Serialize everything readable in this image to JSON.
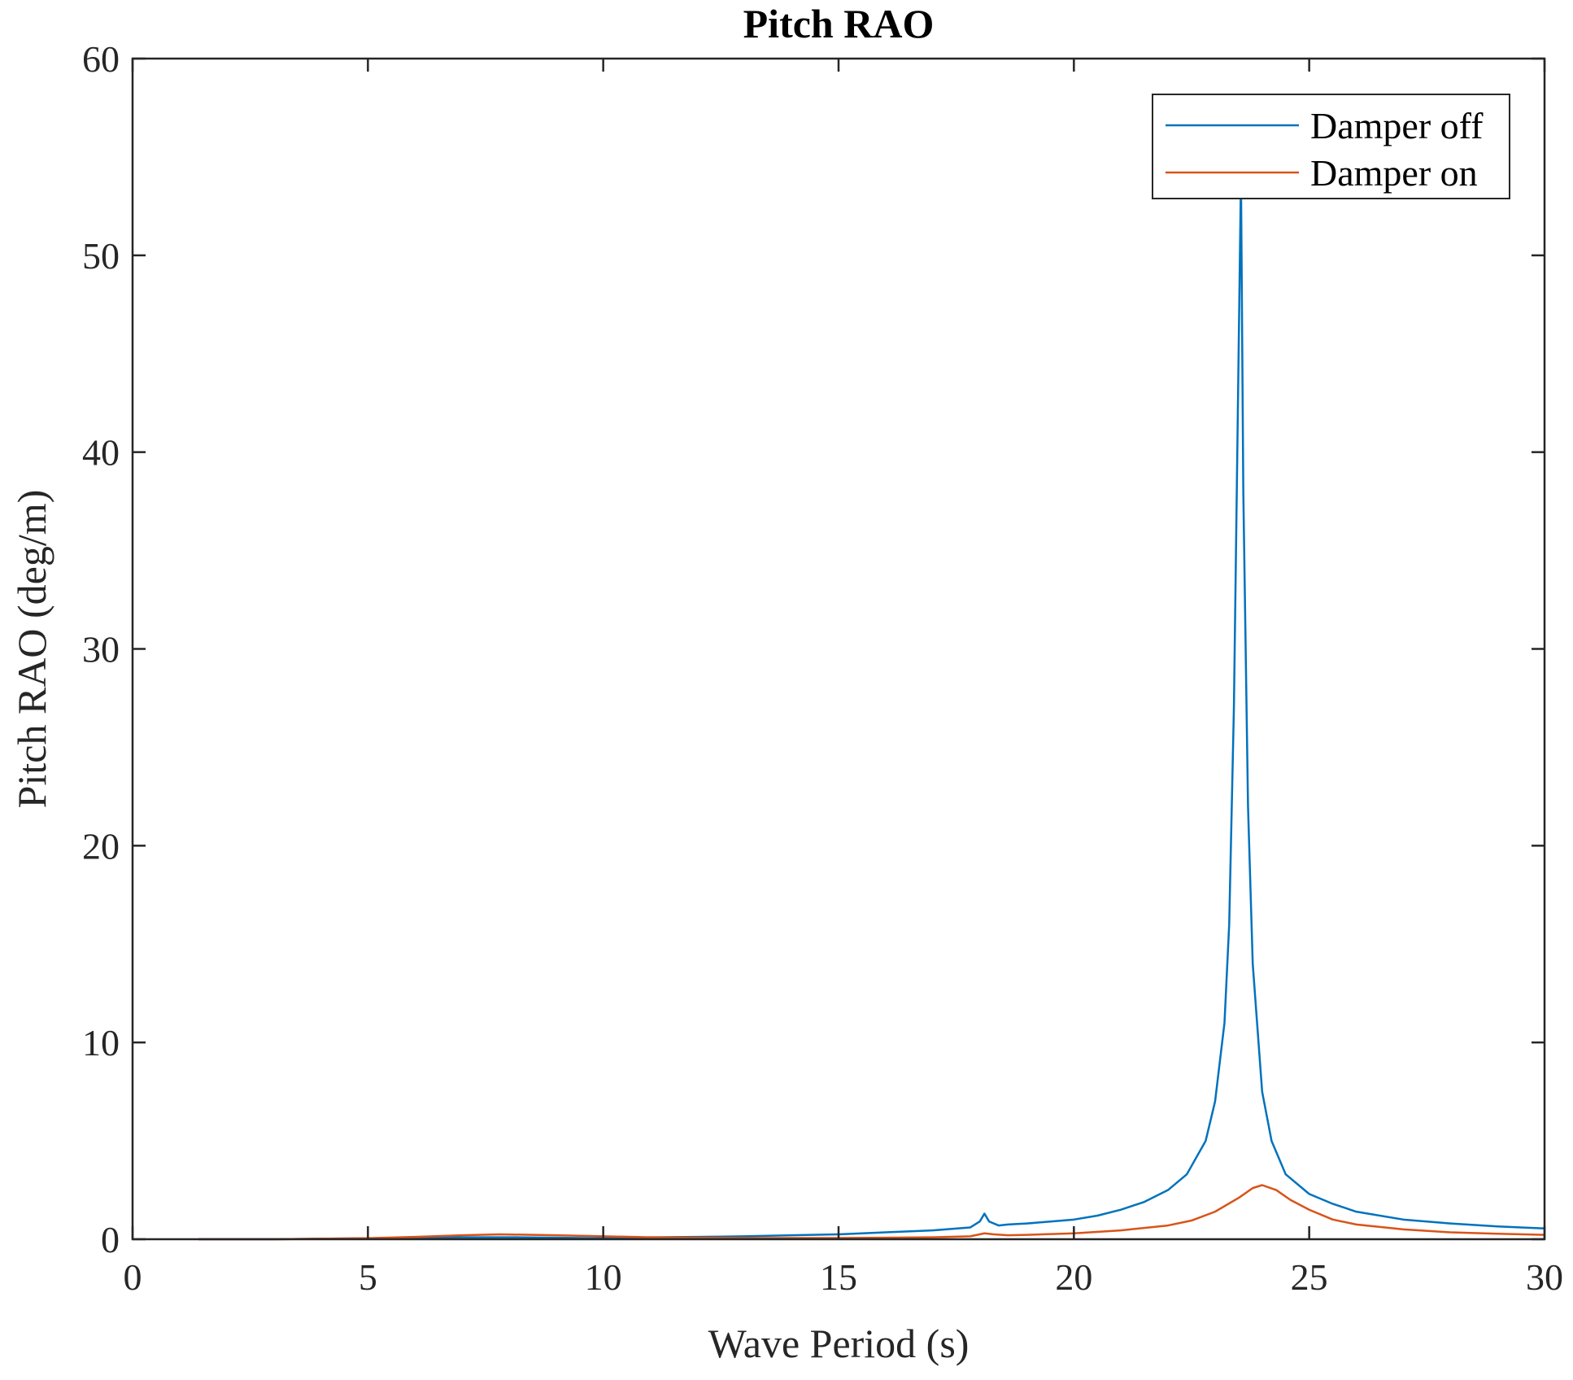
{
  "chart_data": {
    "type": "line",
    "title": "Pitch RAO",
    "xlabel": "Wave Period (s)",
    "ylabel": "Pitch RAO (deg/m)",
    "xlim": [
      0,
      30
    ],
    "ylim": [
      0,
      60
    ],
    "xticks": [
      0,
      5,
      10,
      15,
      20,
      25,
      30
    ],
    "yticks": [
      0,
      10,
      20,
      30,
      40,
      50,
      60
    ],
    "xtick_labels": [
      "0",
      "5",
      "10",
      "15",
      "20",
      "25",
      "30"
    ],
    "ytick_labels": [
      "0",
      "10",
      "20",
      "30",
      "40",
      "50",
      "60"
    ],
    "grid": false,
    "legend_position": "top-right",
    "series": [
      {
        "name": "Damper off",
        "color": "#0072BD",
        "x": [
          1.4,
          3,
          5,
          7,
          8,
          9,
          10,
          11,
          12,
          13,
          14,
          15,
          16,
          17,
          17.8,
          18.0,
          18.1,
          18.2,
          18.4,
          18.6,
          19,
          19.5,
          20,
          20.5,
          21,
          21.5,
          22,
          22.4,
          22.8,
          23.0,
          23.2,
          23.3,
          23.4,
          23.5,
          23.55,
          23.6,
          23.7,
          23.8,
          24.0,
          24.2,
          24.5,
          25,
          25.5,
          26,
          27,
          28,
          29,
          30
        ],
        "y": [
          0.0,
          0.0,
          0.05,
          0.1,
          0.1,
          0.08,
          0.05,
          0.1,
          0.12,
          0.15,
          0.2,
          0.25,
          0.35,
          0.45,
          0.6,
          0.9,
          1.3,
          0.9,
          0.7,
          0.75,
          0.8,
          0.9,
          1.0,
          1.2,
          1.5,
          1.9,
          2.5,
          3.3,
          5.0,
          7.0,
          11.0,
          16.0,
          27.0,
          45.0,
          54.0,
          38.0,
          22.0,
          14.0,
          7.5,
          5.0,
          3.3,
          2.3,
          1.8,
          1.4,
          1.0,
          0.8,
          0.65,
          0.55
        ]
      },
      {
        "name": "Damper on",
        "color": "#D95319",
        "x": [
          1.4,
          3,
          5,
          6,
          7,
          7.8,
          9,
          10,
          11,
          12,
          13,
          14,
          15,
          16,
          17,
          17.8,
          18.1,
          18.3,
          18.6,
          19,
          20,
          21,
          22,
          22.5,
          23,
          23.5,
          23.8,
          24.0,
          24.3,
          24.6,
          25,
          25.5,
          26,
          27,
          28,
          29,
          30
        ],
        "y": [
          0.0,
          0.0,
          0.05,
          0.12,
          0.2,
          0.25,
          0.2,
          0.15,
          0.1,
          0.08,
          0.06,
          0.06,
          0.06,
          0.08,
          0.1,
          0.15,
          0.3,
          0.25,
          0.2,
          0.22,
          0.3,
          0.45,
          0.7,
          0.95,
          1.4,
          2.1,
          2.6,
          2.75,
          2.5,
          2.0,
          1.5,
          1.0,
          0.75,
          0.5,
          0.35,
          0.28,
          0.22
        ]
      }
    ]
  }
}
